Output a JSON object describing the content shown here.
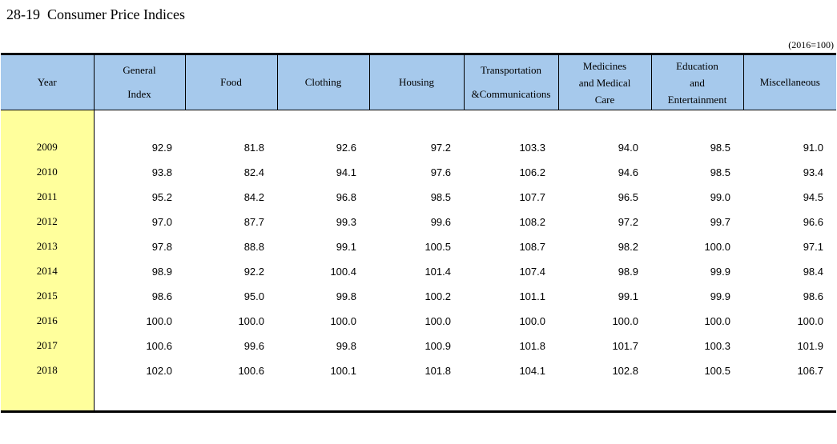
{
  "page": {
    "title": "28-19  Consumer Price Indices",
    "unit_note": "(2016=100)"
  },
  "colors": {
    "header_bg": "#A6C9EC",
    "year_col_bg": "#FFFF9C",
    "border": "#000000"
  },
  "table": {
    "columns": [
      {
        "key": "year",
        "label_lines": [
          "Year"
        ]
      },
      {
        "key": "general-index",
        "label_lines": [
          "General",
          "Index"
        ]
      },
      {
        "key": "food",
        "label_lines": [
          "Food"
        ]
      },
      {
        "key": "clothing",
        "label_lines": [
          "Clothing"
        ]
      },
      {
        "key": "housing",
        "label_lines": [
          "Housing"
        ]
      },
      {
        "key": "transportation-communications",
        "label_lines": [
          "Transportation",
          "&Communications"
        ]
      },
      {
        "key": "medicines-and-medical-care",
        "label_lines": [
          "Medicines",
          "and Medical",
          "Care"
        ]
      },
      {
        "key": "education-and-entertainment",
        "label_lines": [
          "Education",
          "and",
          "Entertainment"
        ]
      },
      {
        "key": "miscellaneous",
        "label_lines": [
          "Miscellaneous"
        ]
      }
    ],
    "rows": [
      {
        "year": "2009",
        "values": [
          "92.9",
          "81.8",
          "92.6",
          "97.2",
          "103.3",
          "94.0",
          "98.5",
          "91.0"
        ]
      },
      {
        "year": "2010",
        "values": [
          "93.8",
          "82.4",
          "94.1",
          "97.6",
          "106.2",
          "94.6",
          "98.5",
          "93.4"
        ]
      },
      {
        "year": "2011",
        "values": [
          "95.2",
          "84.2",
          "96.8",
          "98.5",
          "107.7",
          "96.5",
          "99.0",
          "94.5"
        ]
      },
      {
        "year": "2012",
        "values": [
          "97.0",
          "87.7",
          "99.3",
          "99.6",
          "108.2",
          "97.2",
          "99.7",
          "96.6"
        ]
      },
      {
        "year": "2013",
        "values": [
          "97.8",
          "88.8",
          "99.1",
          "100.5",
          "108.7",
          "98.2",
          "100.0",
          "97.1"
        ]
      },
      {
        "year": "2014",
        "values": [
          "98.9",
          "92.2",
          "100.4",
          "101.4",
          "107.4",
          "98.9",
          "99.9",
          "98.4"
        ]
      },
      {
        "year": "2015",
        "values": [
          "98.6",
          "95.0",
          "99.8",
          "100.2",
          "101.1",
          "99.1",
          "99.9",
          "98.6"
        ]
      },
      {
        "year": "2016",
        "values": [
          "100.0",
          "100.0",
          "100.0",
          "100.0",
          "100.0",
          "100.0",
          "100.0",
          "100.0"
        ]
      },
      {
        "year": "2017",
        "values": [
          "100.6",
          "99.6",
          "99.8",
          "100.9",
          "101.8",
          "101.7",
          "100.3",
          "101.9"
        ]
      },
      {
        "year": "2018",
        "values": [
          "102.0",
          "100.6",
          "100.1",
          "101.8",
          "104.1",
          "102.8",
          "100.5",
          "106.7"
        ]
      }
    ]
  }
}
